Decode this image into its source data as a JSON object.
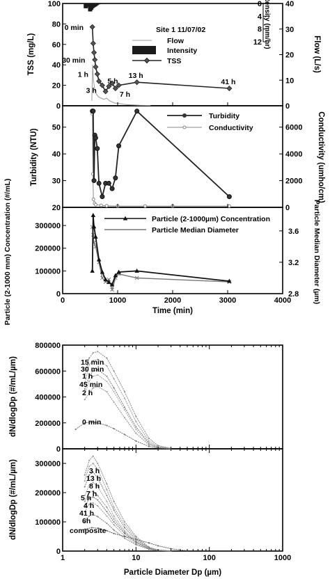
{
  "chart_data": [
    {
      "type": "line",
      "panel": "tss",
      "annotation": "Site 1  11/07/02",
      "ylabel": "TSS (mg/L)",
      "y2label": "Flow (L/s)",
      "y3label": "Intensity (mm/hr)",
      "ylim": [
        0,
        100
      ],
      "y2lim": [
        0,
        40
      ],
      "y3lim": [
        0,
        12
      ],
      "xlim": [
        0,
        4000
      ],
      "yticks": [
        0,
        20,
        40,
        60,
        80,
        100
      ],
      "y2ticks": [
        0,
        10,
        20,
        30,
        40
      ],
      "y3ticks": [
        0,
        4,
        8,
        12
      ],
      "legend": [
        "Flow",
        "Intensity",
        "TSS"
      ],
      "series": [
        {
          "name": "TSS",
          "x": [
            540,
            555,
            570,
            585,
            600,
            630,
            660,
            720,
            780,
            840,
            900,
            960,
            1020,
            1350,
            3030
          ],
          "y": [
            77,
            61,
            52,
            45,
            38,
            31,
            24,
            20,
            14,
            19,
            22,
            17,
            20,
            23,
            17
          ]
        },
        {
          "name": "Flow",
          "x": [
            530,
            545,
            560,
            580,
            600,
            650,
            700,
            750,
            800,
            850,
            900,
            950,
            1000,
            1100,
            1200,
            1400,
            1600
          ],
          "y": [
            2,
            16,
            10,
            7,
            5,
            3.5,
            3,
            2.5,
            3,
            2,
            1.5,
            1,
            1,
            0.6,
            0.4,
            0.2,
            0.1
          ]
        },
        {
          "name": "Intensity",
          "x": [
            420,
            460,
            500,
            520,
            540,
            560,
            580,
            600,
            620,
            640,
            660
          ],
          "y": [
            1.5,
            1,
            2.5,
            2,
            1.5,
            1.2,
            1,
            0.8,
            0.5,
            0.3,
            0.2
          ]
        }
      ],
      "labels": [
        {
          "text": "0 min",
          "x": 540,
          "y": 77
        },
        {
          "text": "30 min",
          "x": 585,
          "y": 45
        },
        {
          "text": "1 h",
          "x": 630,
          "y": 31
        },
        {
          "text": "3 h",
          "x": 780,
          "y": 14
        },
        {
          "text": "5 h",
          "x": 840,
          "y": 19
        },
        {
          "text": "7 h",
          "x": 960,
          "y": 17
        },
        {
          "text": "13 h",
          "x": 1350,
          "y": 23
        },
        {
          "text": "41 h",
          "x": 3030,
          "y": 17
        }
      ]
    },
    {
      "type": "line",
      "panel": "turbidity",
      "ylabel": "Turbidity (NTU)",
      "y2label": "Conductivity (umho/cm)",
      "ylim": [
        20,
        58
      ],
      "y2lim": [
        0,
        7600
      ],
      "xlim": [
        0,
        4000
      ],
      "yticks": [
        20,
        30,
        40,
        50
      ],
      "y2ticks": [
        0,
        2000,
        4000,
        6000
      ],
      "legend": [
        "Turbidity",
        "Conductivity"
      ],
      "series": [
        {
          "name": "Turbidity",
          "x": [
            540,
            555,
            570,
            585,
            600,
            630,
            660,
            720,
            780,
            840,
            900,
            960,
            1020,
            1350,
            3030
          ],
          "y": [
            56,
            56,
            30,
            47,
            46,
            42,
            29,
            24,
            29,
            29,
            27,
            31,
            43,
            56,
            24
          ]
        },
        {
          "name": "Conductivity",
          "x": [
            540,
            550,
            560,
            580,
            600,
            700,
            800,
            1000,
            1500,
            2000,
            3030
          ],
          "y": [
            7000,
            2500,
            600,
            300,
            200,
            150,
            120,
            100,
            100,
            100,
            100
          ]
        }
      ]
    },
    {
      "type": "line",
      "panel": "particle",
      "ylabel": "Particle (2-1000 mm) Concentration (#/mL)",
      "y2label": "Particle Median Diameter (µm)",
      "xlabel": "Time (min)",
      "ylim": [
        0,
        380000
      ],
      "y2lim": [
        2.8,
        3.9
      ],
      "xlim": [
        0,
        4000
      ],
      "xticks": [
        0,
        1000,
        2000,
        3000,
        4000
      ],
      "yticks": [
        0,
        100000,
        200000,
        300000
      ],
      "y2ticks": [
        2.8,
        3.2,
        3.6
      ],
      "legend": [
        "Particle (2-1000µm) Concentration",
        "Particle Median Diameter"
      ],
      "series": [
        {
          "name": "Particle (2-1000µm) Concentration",
          "x": [
            540,
            555,
            570,
            600,
            660,
            720,
            780,
            840,
            900,
            960,
            1020,
            1350,
            3030
          ],
          "y": [
            100000,
            345000,
            295000,
            250000,
            150000,
            95000,
            62000,
            50000,
            40000,
            80000,
            95000,
            100000,
            55000
          ]
        },
        {
          "name": "Particle Median Diameter",
          "x": [
            540,
            555,
            570,
            600,
            660,
            720,
            780,
            840,
            900,
            960,
            1020,
            1350,
            3030
          ],
          "y": [
            3.65,
            3.55,
            3.45,
            3.4,
            3.2,
            3.0,
            2.95,
            2.98,
            2.85,
            3.0,
            3.05,
            3.0,
            2.95
          ]
        }
      ]
    },
    {
      "type": "line",
      "panel": "psd_rising",
      "ylabel": "dN/dlogDp (#/mL/µm)",
      "xscale": "log",
      "xlim": [
        1,
        1000
      ],
      "ylim": [
        0,
        800000
      ],
      "yticks": [
        0,
        200000,
        400000,
        600000,
        800000
      ],
      "series": [
        {
          "name": "15 min",
          "x": [
            2,
            2.3,
            2.6,
            3,
            4,
            5,
            7,
            10,
            15,
            20,
            30
          ],
          "y": [
            560000,
            700000,
            740000,
            750000,
            700000,
            600000,
            440000,
            250000,
            80000,
            25000,
            3000
          ]
        },
        {
          "name": "30 min",
          "x": [
            2,
            2.3,
            2.6,
            3,
            4,
            5,
            7,
            10,
            15,
            20,
            30
          ],
          "y": [
            500000,
            650000,
            680000,
            690000,
            640000,
            540000,
            390000,
            210000,
            60000,
            18000,
            2000
          ]
        },
        {
          "name": "1 h",
          "x": [
            2,
            2.3,
            2.6,
            3,
            4,
            5,
            7,
            10,
            15,
            20,
            30
          ],
          "y": [
            460000,
            560000,
            600000,
            610000,
            560000,
            470000,
            320000,
            170000,
            45000,
            12000,
            1500
          ]
        },
        {
          "name": "45 min",
          "x": [
            2,
            2.3,
            2.6,
            3,
            4,
            5,
            7,
            10,
            15,
            20,
            30
          ],
          "y": [
            420000,
            520000,
            560000,
            570000,
            520000,
            440000,
            300000,
            150000,
            40000,
            10000,
            1000
          ]
        },
        {
          "name": "2 h",
          "x": [
            2,
            2.3,
            2.6,
            3,
            4,
            5,
            7,
            10,
            15,
            20,
            30
          ],
          "y": [
            380000,
            430000,
            470000,
            480000,
            440000,
            360000,
            240000,
            120000,
            30000,
            8000,
            1000
          ]
        },
        {
          "name": "0 min",
          "x": [
            1.5,
            2,
            2.5,
            3,
            4,
            5,
            7,
            10,
            15,
            20,
            30
          ],
          "y": [
            150000,
            200000,
            205000,
            200000,
            180000,
            155000,
            110000,
            60000,
            18000,
            5000,
            500
          ]
        }
      ]
    },
    {
      "type": "line",
      "panel": "psd_falling",
      "ylabel": "dN/dlogDp (#/mL/µm)",
      "xlabel": "Particle Diameter Dp (µm)",
      "xscale": "log",
      "xlim": [
        1,
        1000
      ],
      "ylim": [
        0,
        350000
      ],
      "xticks": [
        1,
        10,
        100,
        1000
      ],
      "yticks": [
        0,
        100000,
        200000,
        300000
      ],
      "series": [
        {
          "name": "3 h",
          "x": [
            2,
            2.3,
            2.6,
            3,
            4,
            5,
            7,
            10,
            15,
            20,
            30
          ],
          "y": [
            260000,
            310000,
            325000,
            300000,
            230000,
            170000,
            100000,
            50000,
            14000,
            4000,
            500
          ]
        },
        {
          "name": "13 h",
          "x": [
            2,
            2.3,
            2.6,
            3,
            4,
            5,
            7,
            10,
            15,
            20,
            30
          ],
          "y": [
            240000,
            290000,
            300000,
            280000,
            210000,
            150000,
            90000,
            45000,
            12000,
            3500,
            500
          ]
        },
        {
          "name": "8 h",
          "x": [
            2,
            2.3,
            2.6,
            3,
            4,
            5,
            7,
            10,
            15,
            20,
            30
          ],
          "y": [
            220000,
            260000,
            270000,
            250000,
            190000,
            140000,
            80000,
            40000,
            11000,
            3000,
            400
          ]
        },
        {
          "name": "7 h",
          "x": [
            2,
            2.3,
            2.6,
            3,
            4,
            5,
            7,
            10,
            15,
            20,
            30
          ],
          "y": [
            190000,
            225000,
            235000,
            220000,
            170000,
            120000,
            70000,
            35000,
            10000,
            2500,
            300
          ]
        },
        {
          "name": "5 h",
          "x": [
            2,
            2.3,
            2.6,
            3,
            4,
            5,
            7,
            10,
            15,
            20,
            30
          ],
          "y": [
            170000,
            200000,
            205000,
            190000,
            150000,
            110000,
            65000,
            32000,
            9000,
            2200,
            300
          ]
        },
        {
          "name": "4 h",
          "x": [
            2,
            2.3,
            2.6,
            3,
            4,
            5,
            7,
            10,
            15,
            20,
            30
          ],
          "y": [
            150000,
            180000,
            185000,
            175000,
            135000,
            100000,
            60000,
            30000,
            8000,
            2000,
            300
          ]
        },
        {
          "name": "41 h",
          "x": [
            2,
            2.3,
            2.6,
            3,
            4,
            5,
            7,
            10,
            15,
            20,
            30
          ],
          "y": [
            135000,
            160000,
            165000,
            155000,
            120000,
            90000,
            52000,
            26000,
            7000,
            1800,
            200
          ]
        },
        {
          "name": "6h",
          "x": [
            2,
            2.3,
            2.6,
            3,
            4,
            5,
            7,
            10,
            15,
            20,
            30
          ],
          "y": [
            100000,
            120000,
            125000,
            118000,
            95000,
            72000,
            44000,
            22000,
            6000,
            1500,
            200
          ]
        },
        {
          "name": "composite",
          "x": [
            2,
            2.5,
            3,
            4,
            5,
            7,
            10,
            15,
            20,
            30,
            50
          ],
          "y": [
            75000,
            80000,
            78000,
            70000,
            60000,
            50000,
            40000,
            28000,
            18000,
            8000,
            1000
          ]
        }
      ]
    }
  ]
}
